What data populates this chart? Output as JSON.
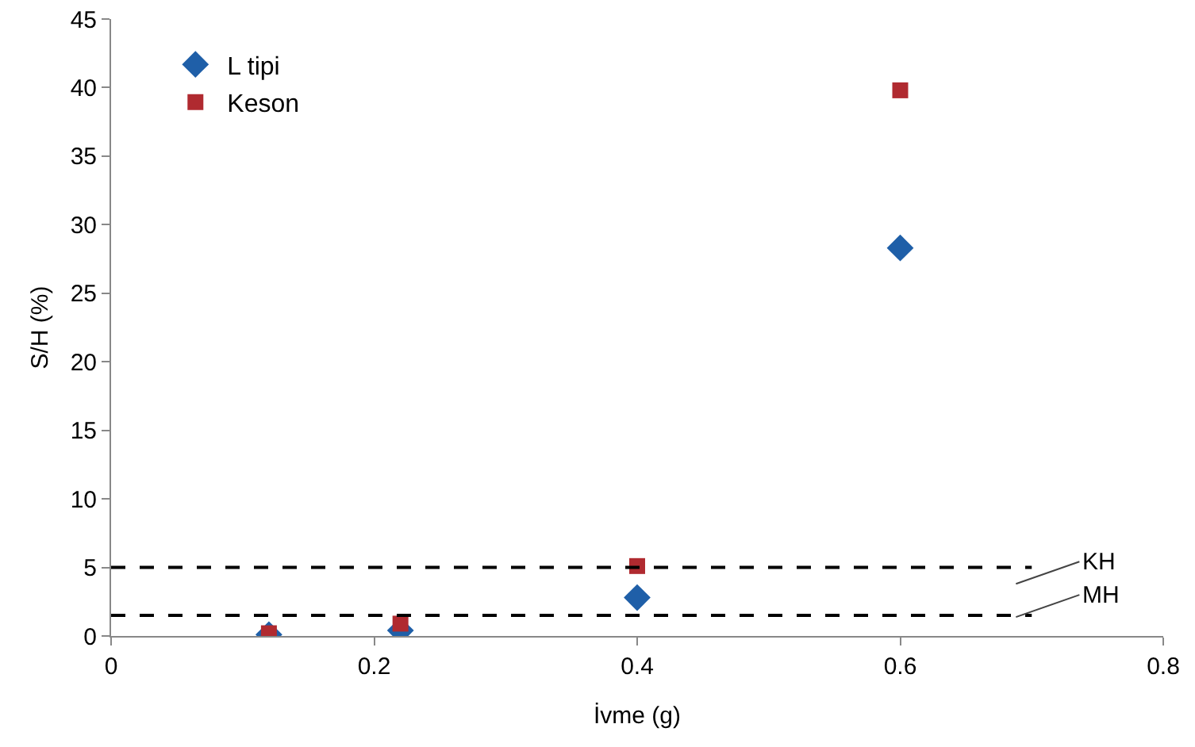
{
  "chart_data": {
    "type": "scatter",
    "xlabel": "İvme (g)",
    "ylabel": "S/H (%)",
    "xlim": [
      0,
      0.8
    ],
    "xticks": [
      0,
      0.2,
      0.4,
      0.6,
      0.8
    ],
    "ylim": [
      0,
      45
    ],
    "yticks": [
      0,
      5,
      10,
      15,
      20,
      25,
      30,
      35,
      40,
      45
    ],
    "grid": false,
    "legend": "top left",
    "series": [
      {
        "name": "L tipi",
        "color": "#1f5fa8",
        "marker": "diamond",
        "x": [
          0.12,
          0.22,
          0.4,
          0.6
        ],
        "values": [
          0.1,
          0.4,
          2.8,
          28.3
        ]
      },
      {
        "name": "Keson",
        "color": "#b02a30",
        "marker": "square",
        "x": [
          0.12,
          0.22,
          0.4,
          0.6
        ],
        "values": [
          0.2,
          0.9,
          5.1,
          39.8
        ]
      }
    ],
    "ref_lines": [
      {
        "axis": "y",
        "value": 5,
        "label": "KH",
        "color": "#000000",
        "line_style": "dashed"
      },
      {
        "axis": "y",
        "value": 1.5,
        "label": "MH",
        "color": "#000000",
        "line_style": "dashed"
      }
    ]
  }
}
